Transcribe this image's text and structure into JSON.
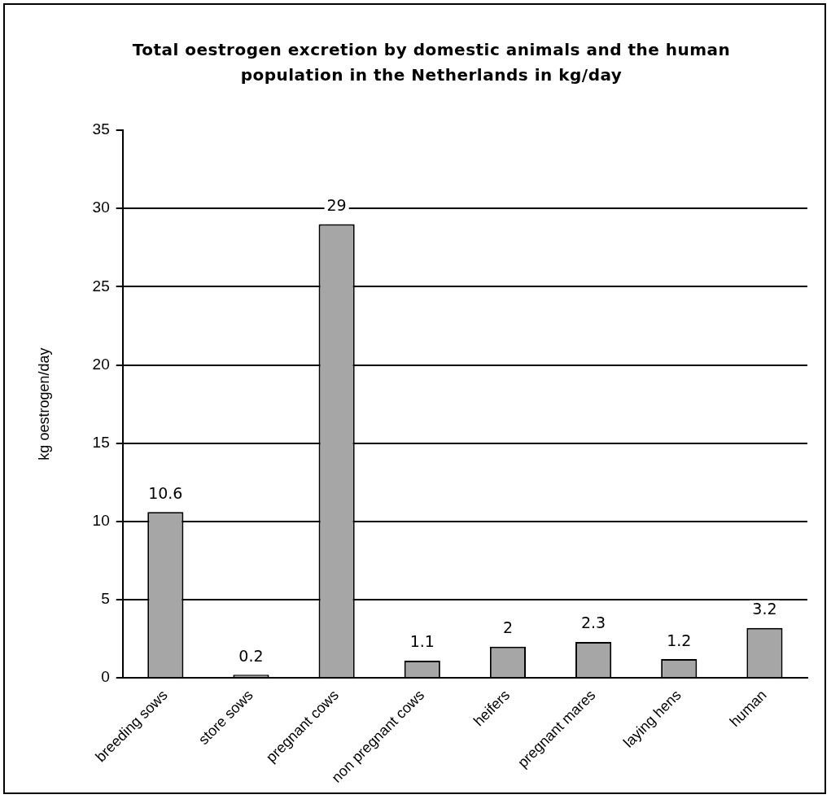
{
  "chart_data": {
    "type": "bar",
    "title": "Total oestrogen excretion by domestic animals and the human population in the Netherlands in kg/day",
    "ylabel": "kg oestrogen/day",
    "categories": [
      "breeding sows",
      "store sows",
      "pregnant cows",
      "non pregnant cows",
      "heifers",
      "pregnant mares",
      "laying hens",
      "human"
    ],
    "values": [
      10.6,
      0.2,
      29,
      1.1,
      2,
      2.3,
      1.2,
      3.2
    ],
    "color": "#a6a6a6",
    "ylim": [
      0,
      35
    ],
    "yticks": [
      0,
      5,
      10,
      15,
      20,
      25,
      30,
      35
    ],
    "grid": "y",
    "legend": false,
    "data_labels": true
  }
}
